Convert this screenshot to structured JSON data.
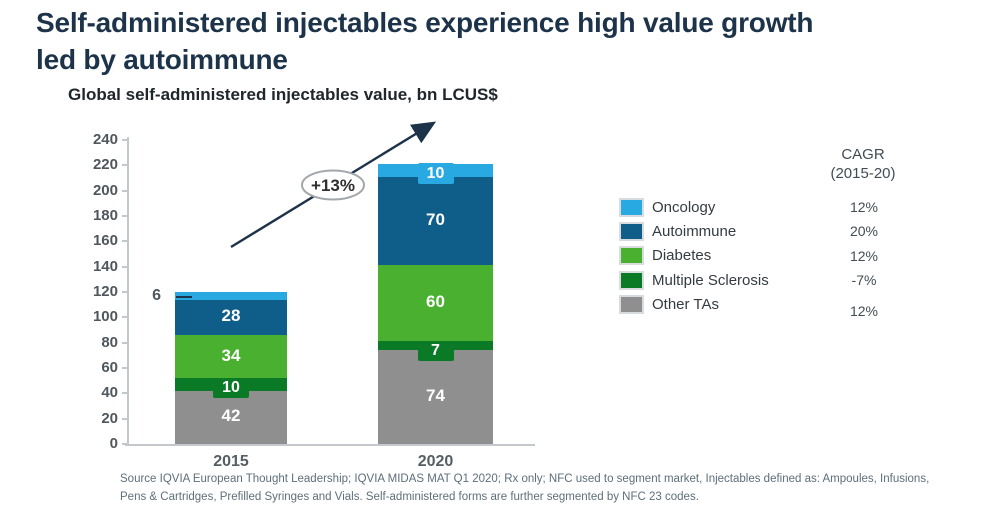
{
  "page": {
    "title_line1": "Self-administered injectables experience high value growth",
    "title_line2": "led by autoimmune"
  },
  "chart_data": {
    "type": "bar",
    "stacked": true,
    "title": "Global self-administered injectables value, bn LCUS$",
    "categories": [
      "2015",
      "2020"
    ],
    "series": [
      {
        "name": "Other TAs",
        "color": "#8f8f8f",
        "values": [
          42,
          74
        ]
      },
      {
        "name": "Multiple Sclerosis",
        "color": "#0a7a26",
        "values": [
          10,
          7
        ]
      },
      {
        "name": "Diabetes",
        "color": "#4ab02f",
        "values": [
          34,
          60
        ]
      },
      {
        "name": "Autoimmune",
        "color": "#0f5d89",
        "values": [
          28,
          70
        ]
      },
      {
        "name": "Oncology",
        "color": "#29a9e1",
        "values": [
          6,
          10
        ]
      }
    ],
    "ylim": [
      0,
      240
    ],
    "ytick_step": 20,
    "grid": false,
    "legend_position": "right",
    "growth_annotation": "+13%"
  },
  "legend": {
    "cagr_header_line1": "CAGR",
    "cagr_header_line2": "(2015-20)",
    "items": [
      {
        "label": "Oncology",
        "color": "#29a9e1",
        "cagr": "12%"
      },
      {
        "label": "Autoimmune",
        "color": "#0f5d89",
        "cagr": "20%"
      },
      {
        "label": "Diabetes",
        "color": "#4ab02f",
        "cagr": "12%"
      },
      {
        "label": "Multiple Sclerosis",
        "color": "#0a7a26",
        "cagr": "-7%"
      },
      {
        "label": "Other TAs",
        "color": "#8f8f8f",
        "cagr": "12%"
      }
    ]
  },
  "colors": {
    "title": "#1d3349",
    "arrow": "#1d3349",
    "axis": "#c3c8cc"
  },
  "footer": {
    "line1": "Source IQVIA European Thought Leadership; IQVIA MIDAS MAT Q1 2020; Rx only; NFC used to segment market, Injectables defined as: Ampoules, Infusions,",
    "line2": "Pens & Cartridges, Prefilled Syringes and Vials. Self-administered forms are further segmented by NFC 23 codes."
  }
}
